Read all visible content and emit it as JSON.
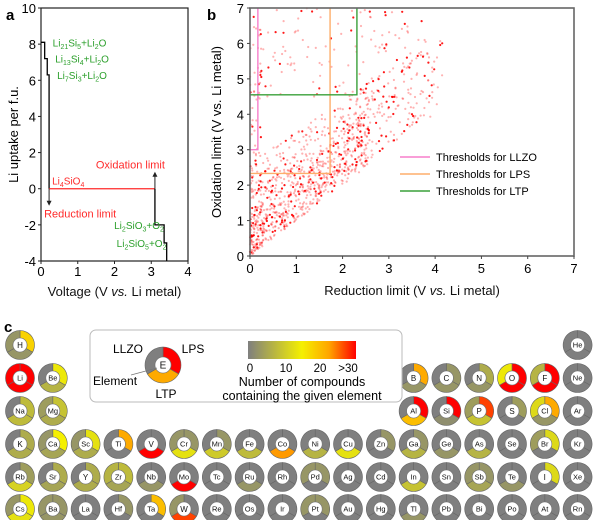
{
  "chart_data": [
    {
      "panel": "a",
      "type": "line",
      "xlabel_pre": "Voltage (V ",
      "xlabel_it": "vs.",
      "xlabel_post": " Li metal)",
      "ylabel": "Li uptake per f.u.",
      "xlim": [
        0,
        4
      ],
      "ylim": [
        -4,
        10
      ],
      "xticks": [
        0,
        1,
        2,
        3,
        4
      ],
      "yticks": [
        -4,
        -2,
        0,
        2,
        4,
        6,
        8,
        10
      ],
      "series": [
        {
          "name": "reduction",
          "color": "#000000",
          "points": [
            [
              0.22,
              0
            ],
            [
              0.22,
              6.3
            ],
            [
              0.17,
              6.3
            ],
            [
              0.17,
              7.2
            ],
            [
              0.1,
              7.2
            ],
            [
              0.1,
              8.1
            ],
            [
              0.0,
              8.1
            ]
          ]
        },
        {
          "name": "stable",
          "color": "#ff2a2a",
          "points": [
            [
              0.22,
              0
            ],
            [
              3.1,
              0
            ]
          ]
        },
        {
          "name": "oxidation",
          "color": "#000000",
          "points": [
            [
              3.1,
              0
            ],
            [
              3.1,
              -2
            ],
            [
              3.35,
              -2
            ],
            [
              3.35,
              -3
            ],
            [
              3.42,
              -3
            ],
            [
              3.42,
              -4
            ]
          ]
        }
      ],
      "annotations": [
        {
          "text_parts": [
            [
              "Li",
              ""
            ],
            [
              "21",
              "sub"
            ],
            [
              "Si",
              ""
            ],
            [
              "5",
              "sub"
            ],
            [
              "+Li",
              ""
            ],
            [
              "2",
              "sub"
            ],
            [
              "O",
              ""
            ]
          ],
          "x": 0.1,
          "y": 8.1,
          "color": "#2ca02c"
        },
        {
          "text_parts": [
            [
              "Li",
              ""
            ],
            [
              "13",
              "sub"
            ],
            [
              "Si",
              ""
            ],
            [
              "4",
              "sub"
            ],
            [
              "+Li",
              ""
            ],
            [
              "2",
              "sub"
            ],
            [
              "O",
              ""
            ]
          ],
          "x": 0.17,
          "y": 7.2,
          "color": "#2ca02c"
        },
        {
          "text_parts": [
            [
              "Li",
              ""
            ],
            [
              "7",
              "sub"
            ],
            [
              "Si",
              ""
            ],
            [
              "3",
              "sub"
            ],
            [
              "+Li",
              ""
            ],
            [
              "2",
              "sub"
            ],
            [
              "O",
              ""
            ]
          ],
          "x": 0.22,
          "y": 6.3,
          "color": "#2ca02c"
        },
        {
          "text_parts": [
            [
              "Li",
              ""
            ],
            [
              "4",
              "sub"
            ],
            [
              "SiO",
              ""
            ],
            [
              "4",
              "sub"
            ]
          ],
          "x": 0.22,
          "y": 0.0,
          "color": "#ff2a2a"
        },
        {
          "text_parts": [
            [
              "Li",
              ""
            ],
            [
              "2",
              "sub"
            ],
            [
              "SiO",
              ""
            ],
            [
              "3",
              "sub"
            ],
            [
              "+O",
              ""
            ],
            [
              "2",
              "sub"
            ]
          ],
          "x": 3.35,
          "y": -2,
          "color": "#2ca02c"
        },
        {
          "text_parts": [
            [
              "Li",
              ""
            ],
            [
              "2",
              "sub"
            ],
            [
              "SiO",
              ""
            ],
            [
              "5",
              "sub"
            ],
            [
              "+O",
              ""
            ],
            [
              "2",
              "sub"
            ]
          ],
          "x": 3.42,
          "y": -3,
          "color": "#2ca02c"
        }
      ],
      "limits": [
        {
          "label": "Reduction limit",
          "x": 0.22,
          "color": "#ff2a2a",
          "direction": "down"
        },
        {
          "label": "Oxidation limit",
          "x": 3.1,
          "color": "#ff2a2a",
          "direction": "up"
        }
      ]
    },
    {
      "panel": "b",
      "type": "scatter",
      "xlabel_pre": "Reduction limit (V ",
      "xlabel_it": "vs.",
      "xlabel_post": " Li metal)",
      "ylabel": "Oxidation limit (V vs. Li metal)",
      "xlim": [
        0,
        7
      ],
      "ylim": [
        0,
        7
      ],
      "xticks": [
        0,
        1,
        2,
        3,
        4,
        5,
        6,
        7
      ],
      "yticks": [
        0,
        1,
        2,
        3,
        4,
        5,
        6,
        7
      ],
      "point_color": "#ff0000",
      "point_count_approx": 1200,
      "point_distribution": "dense wedge below y≈x+2.5 and above y≈x, clustered at low voltages; sparse points up to reduction 5.5 V and oxidation 7 V",
      "thresholds": [
        {
          "name": "Thresholds for LLZO",
          "reduction": 0.17,
          "oxidation": 3.0,
          "color": "#f77fcc"
        },
        {
          "name": "Thresholds for LPS",
          "reduction": 1.73,
          "oxidation": 2.33,
          "color": "#fdae6b"
        },
        {
          "name": "Thresholds for LTP",
          "reduction": 2.31,
          "oxidation": 4.55,
          "color": "#3aa03a"
        }
      ],
      "legend_position": "center-right"
    },
    {
      "panel": "c",
      "type": "heatmap",
      "title": "Number of compounds containing the given element",
      "colorbar": {
        "ticks": [
          "0",
          "10",
          "20",
          ">30"
        ],
        "range": [
          0,
          30
        ],
        "colors": [
          "#7f7f7f",
          "#f5f000",
          "#ffa500",
          "#ff0000"
        ]
      },
      "key": {
        "element": "E",
        "sectors": [
          "LLZO",
          "LPS",
          "LTP"
        ],
        "element_label": "Element",
        "example_counts": [
          0,
          30,
          22
        ]
      },
      "sector_order": [
        "LPS",
        "LTP",
        "LLZO"
      ],
      "elements": [
        {
          "sym": "H",
          "row": 1,
          "col": 1,
          "LPS": 18,
          "LTP": 3,
          "LLZO": 3
        },
        {
          "sym": "He",
          "row": 1,
          "col": 18,
          "LPS": 0,
          "LTP": 0,
          "LLZO": 0
        },
        {
          "sym": "Li",
          "row": 2,
          "col": 1,
          "LPS": 30,
          "LTP": 30,
          "LLZO": 30
        },
        {
          "sym": "Be",
          "row": 2,
          "col": 2,
          "LPS": 14,
          "LTP": 7,
          "LLZO": 0
        },
        {
          "sym": "B",
          "row": 2,
          "col": 13,
          "LPS": 22,
          "LTP": 3,
          "LLZO": 0
        },
        {
          "sym": "C",
          "row": 2,
          "col": 14,
          "LPS": 3,
          "LTP": 3,
          "LLZO": 0
        },
        {
          "sym": "N",
          "row": 2,
          "col": 15,
          "LPS": 6,
          "LTP": 3,
          "LLZO": 0
        },
        {
          "sym": "O",
          "row": 2,
          "col": 16,
          "LPS": 30,
          "LTP": 30,
          "LLZO": 14
        },
        {
          "sym": "F",
          "row": 2,
          "col": 17,
          "LPS": 30,
          "LTP": 30,
          "LLZO": 7
        },
        {
          "sym": "Ne",
          "row": 2,
          "col": 18,
          "LPS": 0,
          "LTP": 0,
          "LLZO": 0
        },
        {
          "sym": "Na",
          "row": 3,
          "col": 1,
          "LPS": 8,
          "LTP": 8,
          "LLZO": 0
        },
        {
          "sym": "Mg",
          "row": 3,
          "col": 2,
          "LPS": 9,
          "LTP": 6,
          "LLZO": 4
        },
        {
          "sym": "Al",
          "row": 3,
          "col": 13,
          "LPS": 30,
          "LTP": 20,
          "LLZO": 0
        },
        {
          "sym": "Si",
          "row": 3,
          "col": 14,
          "LPS": 30,
          "LTP": 2,
          "LLZO": 0
        },
        {
          "sym": "P",
          "row": 3,
          "col": 15,
          "LPS": 27,
          "LTP": 9,
          "LLZO": 4
        },
        {
          "sym": "S",
          "row": 3,
          "col": 16,
          "LPS": 4,
          "LTP": 0,
          "LLZO": 0
        },
        {
          "sym": "Cl",
          "row": 3,
          "col": 17,
          "LPS": 22,
          "LTP": 3,
          "LLZO": 12
        },
        {
          "sym": "Ar",
          "row": 3,
          "col": 18,
          "LPS": 0,
          "LTP": 0,
          "LLZO": 0
        },
        {
          "sym": "K",
          "row": 4,
          "col": 1,
          "LPS": 6,
          "LTP": 6,
          "LLZO": 0
        },
        {
          "sym": "Ca",
          "row": 4,
          "col": 2,
          "LPS": 15,
          "LTP": 5,
          "LLZO": 3
        },
        {
          "sym": "Sc",
          "row": 4,
          "col": 3,
          "LPS": 13,
          "LTP": 6,
          "LLZO": 3
        },
        {
          "sym": "Ti",
          "row": 4,
          "col": 4,
          "LPS": 22,
          "LTP": 0,
          "LLZO": 0
        },
        {
          "sym": "V",
          "row": 4,
          "col": 5,
          "LPS": 0,
          "LTP": 30,
          "LLZO": 0
        },
        {
          "sym": "Cr",
          "row": 4,
          "col": 6,
          "LPS": 3,
          "LTP": 13,
          "LLZO": 3
        },
        {
          "sym": "Mn",
          "row": 4,
          "col": 7,
          "LPS": 3,
          "LTP": 10,
          "LLZO": 0
        },
        {
          "sym": "Fe",
          "row": 4,
          "col": 8,
          "LPS": 0,
          "LTP": 8,
          "LLZO": 0
        },
        {
          "sym": "Co",
          "row": 4,
          "col": 9,
          "LPS": 0,
          "LTP": 23,
          "LLZO": 0
        },
        {
          "sym": "Ni",
          "row": 4,
          "col": 10,
          "LPS": 0,
          "LTP": 7,
          "LLZO": 0
        },
        {
          "sym": "Cu",
          "row": 4,
          "col": 11,
          "LPS": 0,
          "LTP": 13,
          "LLZO": 0
        },
        {
          "sym": "Zn",
          "row": 4,
          "col": 12,
          "LPS": 3,
          "LTP": 0,
          "LLZO": 0
        },
        {
          "sym": "Ga",
          "row": 4,
          "col": 13,
          "LPS": 3,
          "LTP": 7,
          "LLZO": 0
        },
        {
          "sym": "Ge",
          "row": 4,
          "col": 14,
          "LPS": 0,
          "LTP": 3,
          "LLZO": 0
        },
        {
          "sym": "As",
          "row": 4,
          "col": 15,
          "LPS": 0,
          "LTP": 7,
          "LLZO": 0
        },
        {
          "sym": "Se",
          "row": 4,
          "col": 16,
          "LPS": 0,
          "LTP": 0,
          "LLZO": 0
        },
        {
          "sym": "Br",
          "row": 4,
          "col": 17,
          "LPS": 12,
          "LTP": 0,
          "LLZO": 4
        },
        {
          "sym": "Kr",
          "row": 4,
          "col": 18,
          "LPS": 0,
          "LTP": 0,
          "LLZO": 0
        },
        {
          "sym": "Rb",
          "row": 5,
          "col": 1,
          "LPS": 4,
          "LTP": 11,
          "LLZO": 0
        },
        {
          "sym": "Sr",
          "row": 5,
          "col": 2,
          "LPS": 6,
          "LTP": 5,
          "LLZO": 0
        },
        {
          "sym": "Y",
          "row": 5,
          "col": 3,
          "LPS": 6,
          "LTP": 6,
          "LLZO": 0
        },
        {
          "sym": "Zr",
          "row": 5,
          "col": 4,
          "LPS": 8,
          "LTP": 5,
          "LLZO": 7
        },
        {
          "sym": "Nb",
          "row": 5,
          "col": 5,
          "LPS": 0,
          "LTP": 3,
          "LLZO": 0
        },
        {
          "sym": "Mo",
          "row": 5,
          "col": 6,
          "LPS": 0,
          "LTP": 30,
          "LLZO": 0
        },
        {
          "sym": "Tc",
          "row": 5,
          "col": 7,
          "LPS": 0,
          "LTP": 0,
          "LLZO": 0
        },
        {
          "sym": "Ru",
          "row": 5,
          "col": 8,
          "LPS": 0,
          "LTP": 3,
          "LLZO": 0
        },
        {
          "sym": "Rh",
          "row": 5,
          "col": 9,
          "LPS": 0,
          "LTP": 0,
          "LLZO": 0
        },
        {
          "sym": "Pd",
          "row": 5,
          "col": 10,
          "LPS": 3,
          "LTP": 0,
          "LLZO": 3
        },
        {
          "sym": "Ag",
          "row": 5,
          "col": 11,
          "LPS": 0,
          "LTP": 0,
          "LLZO": 0
        },
        {
          "sym": "Cd",
          "row": 5,
          "col": 12,
          "LPS": 0,
          "LTP": 0,
          "LLZO": 0
        },
        {
          "sym": "In",
          "row": 5,
          "col": 13,
          "LPS": 0,
          "LTP": 9,
          "LLZO": 0
        },
        {
          "sym": "Sn",
          "row": 5,
          "col": 14,
          "LPS": 0,
          "LTP": 0,
          "LLZO": 0
        },
        {
          "sym": "Sb",
          "row": 5,
          "col": 15,
          "LPS": 3,
          "LTP": 5,
          "LLZO": 3
        },
        {
          "sym": "Te",
          "row": 5,
          "col": 16,
          "LPS": 0,
          "LTP": 3,
          "LLZO": 0
        },
        {
          "sym": "I",
          "row": 5,
          "col": 17,
          "LPS": 12,
          "LTP": 0,
          "LLZO": 0
        },
        {
          "sym": "Xe",
          "row": 5,
          "col": 18,
          "LPS": 0,
          "LTP": 0,
          "LLZO": 0
        },
        {
          "sym": "Cs",
          "row": 6,
          "col": 1,
          "LPS": 14,
          "LTP": 13,
          "LLZO": 3
        },
        {
          "sym": "Ba",
          "row": 6,
          "col": 2,
          "LPS": 3,
          "LTP": 3,
          "LLZO": 3
        },
        {
          "sym": "La",
          "row": 6,
          "col": 3,
          "LPS": 0,
          "LTP": 0,
          "LLZO": 0
        },
        {
          "sym": "Hf",
          "row": 6,
          "col": 4,
          "LPS": 3,
          "LTP": 0,
          "LLZO": 0
        },
        {
          "sym": "Ta",
          "row": 6,
          "col": 5,
          "LPS": 20,
          "LTP": 0,
          "LLZO": 0
        },
        {
          "sym": "W",
          "row": 6,
          "col": 6,
          "LPS": 0,
          "LTP": 27,
          "LLZO": 3
        },
        {
          "sym": "Re",
          "row": 6,
          "col": 7,
          "LPS": 0,
          "LTP": 0,
          "LLZO": 0
        },
        {
          "sym": "Os",
          "row": 6,
          "col": 8,
          "LPS": 0,
          "LTP": 0,
          "LLZO": 0
        },
        {
          "sym": "Ir",
          "row": 6,
          "col": 9,
          "LPS": 0,
          "LTP": 0,
          "LLZO": 0
        },
        {
          "sym": "Pt",
          "row": 6,
          "col": 10,
          "LPS": 3,
          "LTP": 0,
          "LLZO": 3
        },
        {
          "sym": "Au",
          "row": 6,
          "col": 11,
          "LPS": 0,
          "LTP": 0,
          "LLZO": 0
        },
        {
          "sym": "Hg",
          "row": 6,
          "col": 12,
          "LPS": 0,
          "LTP": 0,
          "LLZO": 0
        },
        {
          "sym": "Tl",
          "row": 6,
          "col": 13,
          "LPS": 0,
          "LTP": 3,
          "LLZO": 0
        },
        {
          "sym": "Pb",
          "row": 6,
          "col": 14,
          "LPS": 0,
          "LTP": 0,
          "LLZO": 0
        },
        {
          "sym": "Bi",
          "row": 6,
          "col": 15,
          "LPS": 0,
          "LTP": 0,
          "LLZO": 0
        },
        {
          "sym": "Po",
          "row": 6,
          "col": 16,
          "LPS": 0,
          "LTP": 0,
          "LLZO": 0
        },
        {
          "sym": "At",
          "row": 6,
          "col": 17,
          "LPS": 0,
          "LTP": 0,
          "LLZO": 0
        },
        {
          "sym": "Rn",
          "row": 6,
          "col": 18,
          "LPS": 0,
          "LTP": 0,
          "LLZO": 0
        }
      ]
    }
  ],
  "labels": {
    "a": "a",
    "b": "b",
    "c": "c"
  }
}
